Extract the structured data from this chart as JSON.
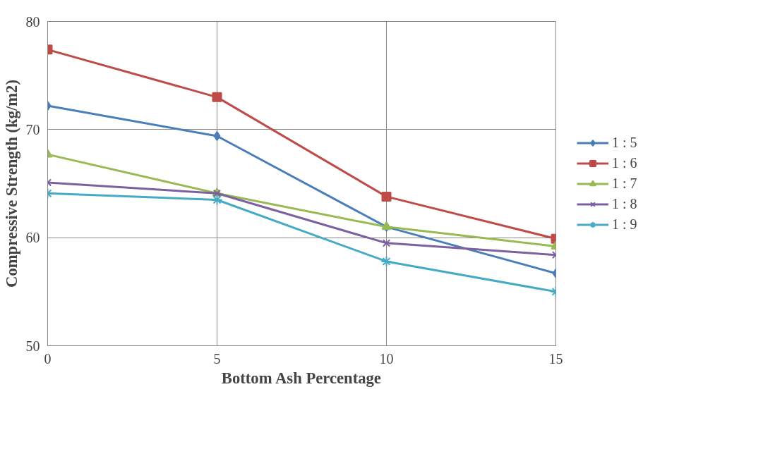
{
  "chart_data": {
    "type": "line",
    "xlabel": "Bottom Ash Percentage",
    "ylabel": "Compressive Strength (kg/m2)",
    "x": [
      0,
      5,
      10,
      15
    ],
    "xlim": [
      0,
      15
    ],
    "xticks": [
      0,
      5,
      10,
      15
    ],
    "ylim": [
      50,
      80
    ],
    "yticks": [
      50,
      60,
      70,
      80
    ],
    "grid": true,
    "legend": "right",
    "series": [
      {
        "name": "1 : 5",
        "color": "#4a7ebb",
        "marker": "diamond",
        "values": [
          72.2,
          69.4,
          61.0,
          56.7
        ]
      },
      {
        "name": "1 : 6",
        "color": "#be4b48",
        "marker": "square",
        "values": [
          77.4,
          73.0,
          63.8,
          59.9
        ]
      },
      {
        "name": "1 : 7",
        "color": "#98b954",
        "marker": "triangle",
        "values": [
          67.7,
          64.1,
          61.0,
          59.2
        ]
      },
      {
        "name": "1 : 8",
        "color": "#7d60a0",
        "marker": "x",
        "values": [
          65.1,
          64.1,
          59.5,
          58.4
        ]
      },
      {
        "name": "1 : 9",
        "color": "#46aac5",
        "marker": "cross",
        "values": [
          64.1,
          63.5,
          57.8,
          55.0
        ]
      }
    ]
  }
}
